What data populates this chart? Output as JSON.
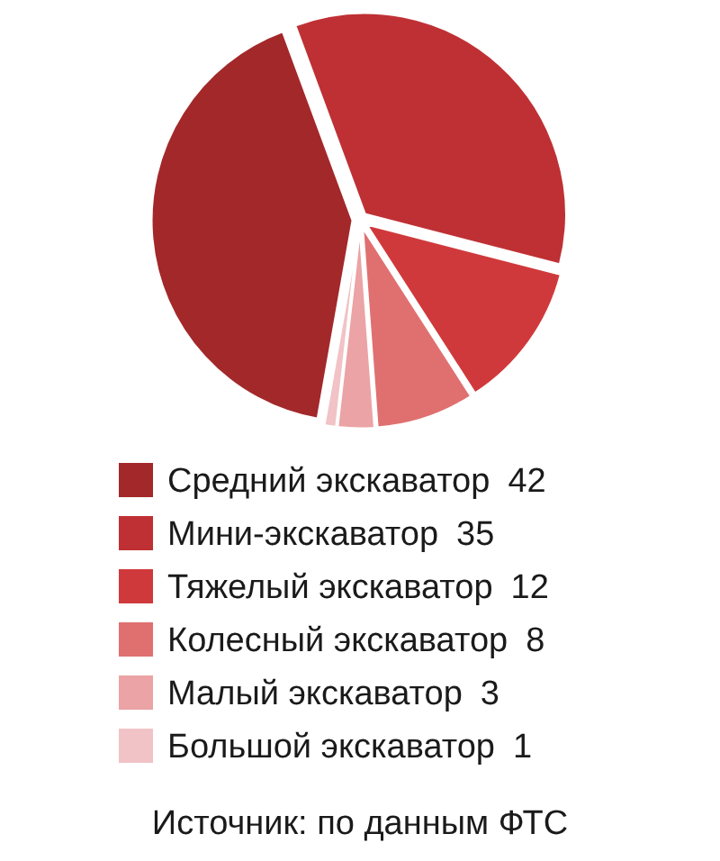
{
  "chart_data": {
    "type": "pie",
    "categories": [
      "Средний экскаватор",
      "Мини-экскаватор",
      "Тяжелый экскаватор",
      "Колесный экскаватор",
      "Малый экскаватор",
      "Большой экскаватор"
    ],
    "values": [
      42,
      35,
      12,
      8,
      3,
      1
    ],
    "colors": [
      "#a3282a",
      "#bf3034",
      "#d0393b",
      "#e07070",
      "#eba3a5",
      "#f1c3c6"
    ],
    "data_labels": true,
    "legend": "bottom",
    "annotations": [
      "Источник: по данным ФТС"
    ]
  }
}
